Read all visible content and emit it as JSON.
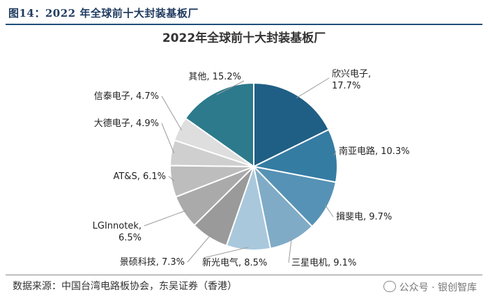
{
  "figure_caption": "图14：2022 年全球前十大封装基板厂",
  "source_text": "数据来源：中国台湾电路板协会，东吴证券（香港）",
  "watermark_text": "公众号 · 银创智库",
  "watermark_icon": "wechat-icon",
  "chart_data": {
    "type": "pie",
    "title": "2022年全球前十大封装基板厂",
    "start_angle_deg": 0,
    "direction": "clockwise",
    "slices": [
      {
        "label": "欣兴电子",
        "value": 17.7,
        "text": "欣兴电子,",
        "pct_text": "17.7%",
        "color": "#1f5f85"
      },
      {
        "label": "南亚电路",
        "value": 10.3,
        "text": "南亚电路,",
        "pct_text": "10.3%",
        "color": "#357ca3"
      },
      {
        "label": "揖斐电",
        "value": 9.7,
        "text": "揖斐电,",
        "pct_text": "9.7%",
        "color": "#5692b5"
      },
      {
        "label": "三星电机",
        "value": 9.1,
        "text": "三星电机,",
        "pct_text": "9.1%",
        "color": "#7fabc6"
      },
      {
        "label": "新光电气",
        "value": 8.5,
        "text": "新光电气,",
        "pct_text": "8.5%",
        "color": "#a9c8dc"
      },
      {
        "label": "景硕科技",
        "value": 7.3,
        "text": "景硕科技,",
        "pct_text": "7.3%",
        "color": "#9a9a9a"
      },
      {
        "label": "LGInnotek",
        "value": 6.5,
        "text": "LGInnotek,",
        "pct_text": "6.5%",
        "color": "#aaaaaa"
      },
      {
        "label": "AT&S",
        "value": 6.1,
        "text": "AT&S,",
        "pct_text": "6.1%",
        "color": "#bdbdbd"
      },
      {
        "label": "大德电子",
        "value": 4.9,
        "text": "大德电子,",
        "pct_text": "4.9%",
        "color": "#cfcfcf"
      },
      {
        "label": "信泰电子",
        "value": 4.7,
        "text": "信泰电子,",
        "pct_text": "4.7%",
        "color": "#dedede"
      },
      {
        "label": "其他",
        "value": 15.2,
        "text": "其他,",
        "pct_text": "15.2%",
        "color": "#2c7a8c"
      }
    ]
  }
}
